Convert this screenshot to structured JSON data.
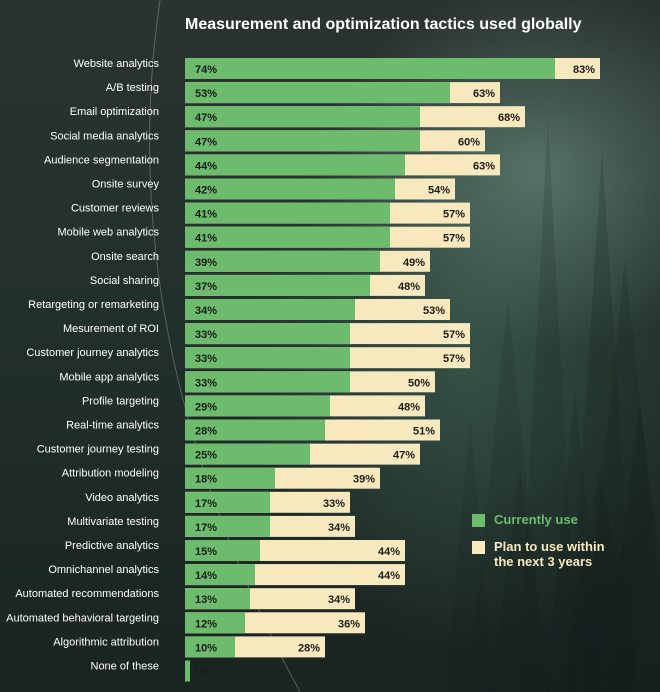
{
  "chart_data": {
    "type": "bar",
    "orientation": "horizontal",
    "title": "Measurement and optimization tactics used globally",
    "categories": [
      "Website analytics",
      "A/B testing",
      "Email optimization",
      "Social media analytics",
      "Audience segmentation",
      "Onsite survey",
      "Customer reviews",
      "Mobile web analytics",
      "Onsite search",
      "Social sharing",
      "Retargeting or remarketing",
      "Mesurement of ROI",
      "Customer journey analytics",
      "Mobile app analytics",
      "Profile targeting",
      "Real-time analytics",
      "Customer journey testing",
      "Attribution modeling",
      "Video analytics",
      "Multivariate testing",
      "Predictive analytics",
      "Omnichannel analytics",
      "Automated recommendations",
      "Automated behavioral targeting",
      "Algorithmic attribution",
      "None of these"
    ],
    "series": [
      {
        "name": "Currently use",
        "color": "#6dbb6d",
        "values": [
          74,
          53,
          47,
          47,
          44,
          42,
          41,
          41,
          39,
          37,
          34,
          33,
          33,
          33,
          29,
          28,
          25,
          18,
          17,
          17,
          15,
          14,
          13,
          12,
          10,
          1
        ]
      },
      {
        "name": "Plan to use within the next 3 years",
        "color": "#f7e8bd",
        "values": [
          83,
          63,
          68,
          60,
          63,
          54,
          57,
          57,
          49,
          48,
          53,
          57,
          57,
          50,
          48,
          51,
          47,
          39,
          33,
          34,
          44,
          44,
          34,
          36,
          28,
          null
        ]
      }
    ],
    "value_suffix": "%",
    "xlim": [
      0,
      100
    ],
    "grid": false,
    "legend": "bottom-right"
  },
  "colors": {
    "current": "#6dbb6d",
    "plan": "#f7e8bd",
    "label_text": "#ffffff",
    "value_text": "#1c1c1c"
  }
}
